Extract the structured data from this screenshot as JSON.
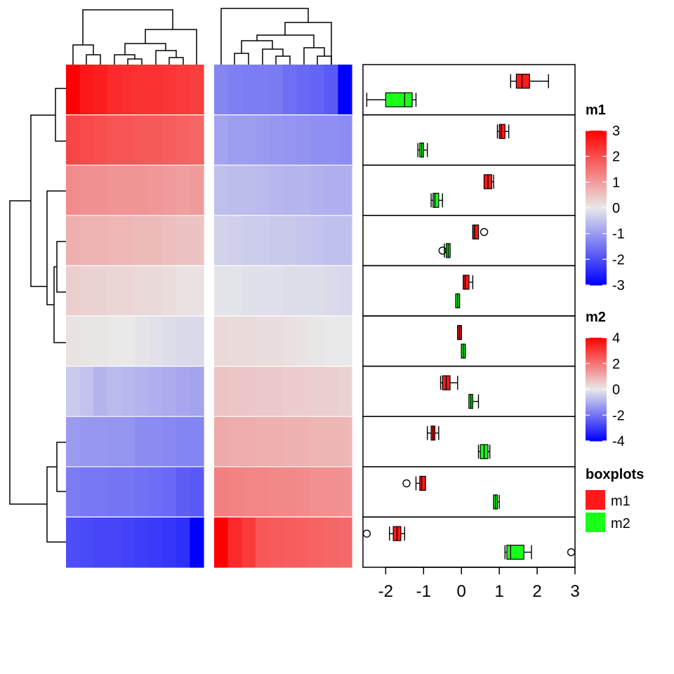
{
  "chart_data": {
    "type": "heatmap",
    "heatmaps": [
      {
        "name": "m1",
        "rows": 10,
        "cols": 10,
        "values": [
          [
            3.0,
            2.7,
            2.6,
            2.45,
            2.4,
            2.35,
            2.35,
            2.3,
            2.25,
            2.2
          ],
          [
            2.1,
            2.05,
            2.0,
            1.9,
            1.9,
            1.85,
            1.85,
            1.8,
            1.75,
            1.7
          ],
          [
            1.2,
            1.15,
            1.15,
            1.1,
            1.1,
            1.1,
            1.05,
            1.0,
            0.95,
            1.0
          ],
          [
            0.75,
            0.7,
            0.7,
            0.65,
            0.65,
            0.6,
            0.6,
            0.55,
            0.5,
            0.5
          ],
          [
            0.35,
            0.3,
            0.3,
            0.25,
            0.25,
            0.2,
            0.2,
            0.15,
            0.1,
            0.1
          ],
          [
            0.1,
            0.05,
            0.05,
            0.0,
            0.0,
            -0.05,
            -0.1,
            -0.15,
            -0.2,
            -0.2
          ],
          [
            -0.4,
            -0.5,
            -0.7,
            -0.6,
            -0.65,
            -0.7,
            -0.75,
            -0.8,
            -0.85,
            -0.9
          ],
          [
            -1.0,
            -1.05,
            -1.05,
            -1.1,
            -1.1,
            -1.2,
            -1.2,
            -1.25,
            -1.3,
            -1.3
          ],
          [
            -1.4,
            -1.45,
            -1.45,
            -1.5,
            -1.5,
            -1.55,
            -1.6,
            -1.65,
            -1.8,
            -1.85
          ],
          [
            -2.0,
            -2.05,
            -2.1,
            -2.1,
            -2.15,
            -2.2,
            -2.25,
            -2.3,
            -2.4,
            -3.0
          ]
        ]
      },
      {
        "name": "m2",
        "rows": 10,
        "cols": 10,
        "values": [
          [
            -1.7,
            -1.8,
            -1.85,
            -1.85,
            -1.9,
            -2.1,
            -2.2,
            -2.3,
            -2.45,
            -4.0
          ],
          [
            -1.2,
            -1.3,
            -1.3,
            -1.35,
            -1.4,
            -1.45,
            -1.5,
            -1.55,
            -1.55,
            -1.6
          ],
          [
            -0.7,
            -0.75,
            -0.75,
            -0.8,
            -0.85,
            -0.9,
            -0.9,
            -0.95,
            -1.0,
            -1.0
          ],
          [
            -0.4,
            -0.45,
            -0.5,
            -0.5,
            -0.55,
            -0.55,
            -0.6,
            -0.65,
            -0.7,
            -0.7
          ],
          [
            -0.1,
            -0.1,
            -0.15,
            -0.15,
            -0.15,
            -0.2,
            -0.2,
            -0.2,
            -0.25,
            -0.3
          ],
          [
            0.3,
            0.25,
            0.25,
            0.2,
            0.2,
            0.15,
            0.1,
            0.05,
            0.0,
            0.0
          ],
          [
            0.65,
            0.6,
            0.6,
            0.55,
            0.55,
            0.5,
            0.5,
            0.45,
            0.45,
            0.4
          ],
          [
            1.1,
            1.05,
            1.05,
            1.0,
            1.0,
            0.95,
            0.95,
            0.9,
            0.9,
            0.85
          ],
          [
            1.8,
            1.75,
            1.7,
            1.7,
            1.65,
            1.65,
            1.6,
            1.55,
            1.55,
            1.5
          ],
          [
            4.0,
            3.3,
            3.0,
            2.5,
            2.45,
            2.4,
            2.35,
            2.3,
            2.25,
            2.2
          ]
        ]
      }
    ],
    "boxplots": {
      "xlim": [
        -2.6,
        3.0
      ],
      "xticks": [
        -2,
        -1,
        0,
        1,
        2,
        3
      ],
      "groups": [
        {
          "m1": {
            "min": 1.3,
            "q1": 1.45,
            "median": 1.6,
            "q3": 1.8,
            "max": 2.3,
            "outliers": []
          },
          "m2": {
            "min": -2.5,
            "q1": -2.0,
            "median": -1.5,
            "q3": -1.3,
            "max": -1.2,
            "outliers": []
          }
        },
        {
          "m1": {
            "min": 0.95,
            "q1": 1.0,
            "median": 1.05,
            "q3": 1.15,
            "max": 1.25,
            "outliers": []
          },
          "m2": {
            "min": -1.15,
            "q1": -1.1,
            "median": -1.05,
            "q3": -1.0,
            "max": -0.9,
            "outliers": []
          }
        },
        {
          "m1": {
            "min": 0.6,
            "q1": 0.6,
            "median": 0.7,
            "q3": 0.8,
            "max": 0.85,
            "outliers": []
          },
          "m2": {
            "min": -0.8,
            "q1": -0.75,
            "median": -0.7,
            "q3": -0.6,
            "max": -0.5,
            "outliers": []
          }
        },
        {
          "m1": {
            "min": 0.3,
            "q1": 0.3,
            "median": 0.35,
            "q3": 0.45,
            "max": 0.45,
            "outliers": [
              0.6
            ]
          },
          "m2": {
            "min": -0.45,
            "q1": -0.4,
            "median": -0.35,
            "q3": -0.3,
            "max": -0.3,
            "outliers": [
              -0.5
            ]
          }
        },
        {
          "m1": {
            "min": 0.05,
            "q1": 0.05,
            "median": 0.1,
            "q3": 0.2,
            "max": 0.3,
            "outliers": []
          },
          "m2": {
            "min": -0.15,
            "q1": -0.15,
            "median": -0.1,
            "q3": -0.05,
            "max": -0.05,
            "outliers": []
          }
        },
        {
          "m1": {
            "min": -0.1,
            "q1": -0.1,
            "median": -0.05,
            "q3": 0.0,
            "max": 0.0,
            "outliers": []
          },
          "m2": {
            "min": 0.0,
            "q1": 0.0,
            "median": 0.05,
            "q3": 0.1,
            "max": 0.1,
            "outliers": []
          }
        },
        {
          "m1": {
            "min": -0.55,
            "q1": -0.5,
            "median": -0.4,
            "q3": -0.3,
            "max": -0.1,
            "outliers": []
          },
          "m2": {
            "min": 0.2,
            "q1": 0.2,
            "median": 0.25,
            "q3": 0.3,
            "max": 0.45,
            "outliers": []
          }
        },
        {
          "m1": {
            "min": -0.9,
            "q1": -0.8,
            "median": -0.75,
            "q3": -0.7,
            "max": -0.6,
            "outliers": []
          },
          "m2": {
            "min": 0.45,
            "q1": 0.5,
            "median": 0.6,
            "q3": 0.7,
            "max": 0.75,
            "outliers": []
          }
        },
        {
          "m1": {
            "min": -1.2,
            "q1": -1.1,
            "median": -1.05,
            "q3": -0.95,
            "max": -0.95,
            "outliers": [
              -1.45
            ]
          },
          "m2": {
            "min": 0.85,
            "q1": 0.85,
            "median": 0.9,
            "q3": 0.95,
            "max": 1.0,
            "outliers": []
          }
        },
        {
          "m1": {
            "min": -1.9,
            "q1": -1.8,
            "median": -1.7,
            "q3": -1.6,
            "max": -1.5,
            "outliers": [
              -2.5
            ]
          },
          "m2": {
            "min": 1.15,
            "q1": 1.2,
            "median": 1.3,
            "q3": 1.65,
            "max": 1.85,
            "outliers": [
              2.9
            ]
          }
        }
      ]
    },
    "legends": [
      {
        "title": "m1",
        "type": "continuous",
        "ticks": [
          3,
          2,
          1,
          0,
          -1,
          -2,
          -3
        ],
        "tick_labels": [
          "3",
          "2",
          "1",
          "0",
          "-1",
          "-2",
          "-3"
        ],
        "colors": [
          "#ff0000",
          "#e9e9e9",
          "#0000ff"
        ],
        "range": [
          -3,
          3
        ]
      },
      {
        "title": "m2",
        "type": "continuous",
        "ticks": [
          4,
          2,
          0,
          -2,
          -4
        ],
        "tick_labels": [
          "4",
          "2",
          "0",
          "-2",
          "-4"
        ],
        "colors": [
          "#ff0000",
          "#e9e9e9",
          "#0000ff"
        ],
        "range": [
          -4,
          4
        ]
      },
      {
        "title": "boxplots",
        "type": "discrete",
        "items": [
          {
            "label": "m1",
            "color": "#ff1a1a"
          },
          {
            "label": "m2",
            "color": "#1aff1a"
          }
        ]
      }
    ],
    "dendrogram_rows": true,
    "dendrogram_cols": true,
    "legend_placement": "right"
  }
}
